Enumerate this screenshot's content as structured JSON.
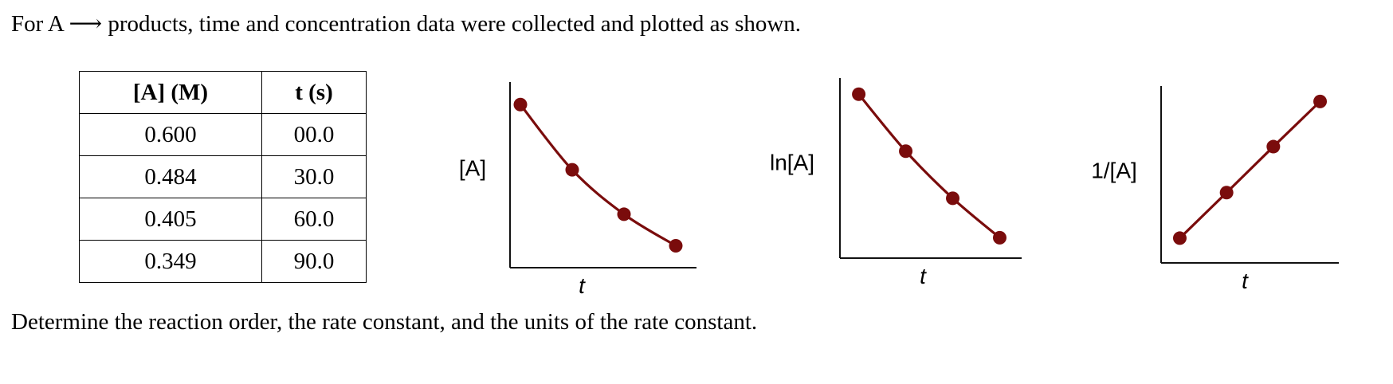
{
  "intro": {
    "prefix": "For A",
    "arrow": "⟶",
    "suffix": "products, time and concentration data were collected and plotted as shown."
  },
  "table": {
    "headers": [
      "[A] (M)",
      "t (s)"
    ],
    "rows": [
      [
        "0.600",
        "00.0"
      ],
      [
        "0.484",
        "30.0"
      ],
      [
        "0.405",
        "60.0"
      ],
      [
        "0.349",
        "90.0"
      ]
    ]
  },
  "question": "Determine the reaction order, the rate constant, and the units of the rate constant.",
  "colors": {
    "series": "#7a0c0c",
    "axis": "#111111"
  },
  "chart_data": [
    {
      "type": "line",
      "ylabel": "[A]",
      "xlabel": "t",
      "x": [
        0,
        30,
        60,
        90
      ],
      "y": [
        0.6,
        0.484,
        0.405,
        0.349
      ],
      "xlim": [
        -6,
        102
      ],
      "ylim": [
        0.31,
        0.64
      ],
      "curve": "smooth",
      "ticks": false,
      "grid": false
    },
    {
      "type": "line",
      "ylabel": "ln[A]",
      "xlabel": "t",
      "x": [
        0,
        30,
        60,
        90
      ],
      "y": [
        -0.511,
        -0.726,
        -0.904,
        -1.053
      ],
      "xlim": [
        -12,
        104
      ],
      "ylim": [
        -1.13,
        -0.45
      ],
      "curve": "smooth",
      "ticks": false,
      "grid": false
    },
    {
      "type": "line",
      "ylabel": "1/[A]",
      "xlabel": "t",
      "x": [
        0,
        30,
        60,
        90
      ],
      "y": [
        1.667,
        2.066,
        2.469,
        2.865
      ],
      "xlim": [
        -12,
        102
      ],
      "ylim": [
        1.45,
        3.0
      ],
      "curve": "linear",
      "ticks": false,
      "grid": false
    }
  ]
}
